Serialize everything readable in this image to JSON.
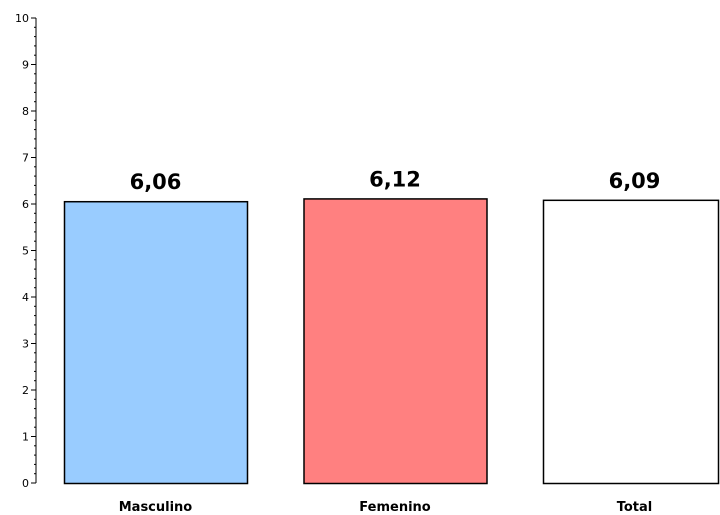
{
  "chart_data": {
    "type": "bar",
    "categories": [
      "Masculino",
      "Femenino",
      "Total"
    ],
    "values": [
      6.06,
      6.12,
      6.09
    ],
    "data_labels": [
      "6,06",
      "6,12",
      "6,09"
    ],
    "colors": [
      "#99ccff",
      "#ff8080",
      "#ffffff"
    ],
    "title": "",
    "xlabel": "",
    "ylabel": "",
    "ylim": [
      0,
      10
    ],
    "yticks": [
      0,
      1,
      2,
      3,
      4,
      5,
      6,
      7,
      8,
      9,
      10
    ],
    "ytick_labels": [
      "0",
      "1",
      "2",
      "3",
      "4",
      "5",
      "6",
      "7",
      "8",
      "9",
      "10"
    ],
    "minor_ticks_per_major": 5,
    "grid": false,
    "legend": "none"
  }
}
